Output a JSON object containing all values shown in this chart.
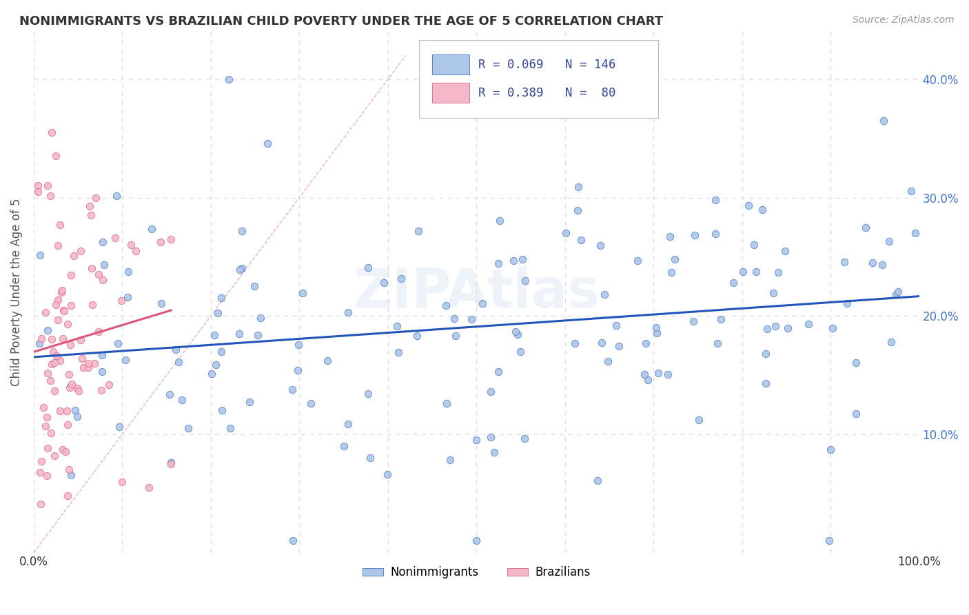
{
  "title": "NONIMMIGRANTS VS BRAZILIAN CHILD POVERTY UNDER THE AGE OF 5 CORRELATION CHART",
  "source": "Source: ZipAtlas.com",
  "ylabel": "Child Poverty Under the Age of 5",
  "xlim": [
    0,
    1
  ],
  "ylim": [
    0,
    0.44
  ],
  "ytick_positions": [
    0.1,
    0.2,
    0.3,
    0.4
  ],
  "ytick_labels": [
    "10.0%",
    "20.0%",
    "30.0%",
    "40.0%"
  ],
  "xtick_positions": [
    0.0,
    0.1,
    0.2,
    0.3,
    0.4,
    0.5,
    0.6,
    0.7,
    0.8,
    0.9,
    1.0
  ],
  "xtick_labels": [
    "0.0%",
    "",
    "",
    "",
    "",
    "",
    "",
    "",
    "",
    "",
    "100.0%"
  ],
  "nonimmigrant_color": "#aec6e8",
  "brazilian_color": "#f5b8cb",
  "nonimmigrant_edge_color": "#5588cc",
  "brazilian_edge_color": "#e07090",
  "line_blue": "#2255bb",
  "line_pink": "#dd5577",
  "line_diag_color": "#f0b0c0",
  "R_nonimmigrant": 0.069,
  "N_nonimmigrant": 146,
  "R_brazilian": 0.389,
  "N_brazilian": 80,
  "legend_labels": [
    "Nonimmigrants",
    "Brazilians"
  ],
  "watermark": "ZIPAtlas",
  "background_color": "#ffffff",
  "grid_color": "#dddddd",
  "title_color": "#333333",
  "axis_label_color": "#555555",
  "tick_label_color_y": "#4477cc",
  "tick_label_color_x": "#333333",
  "legend_text_color": "#334499"
}
